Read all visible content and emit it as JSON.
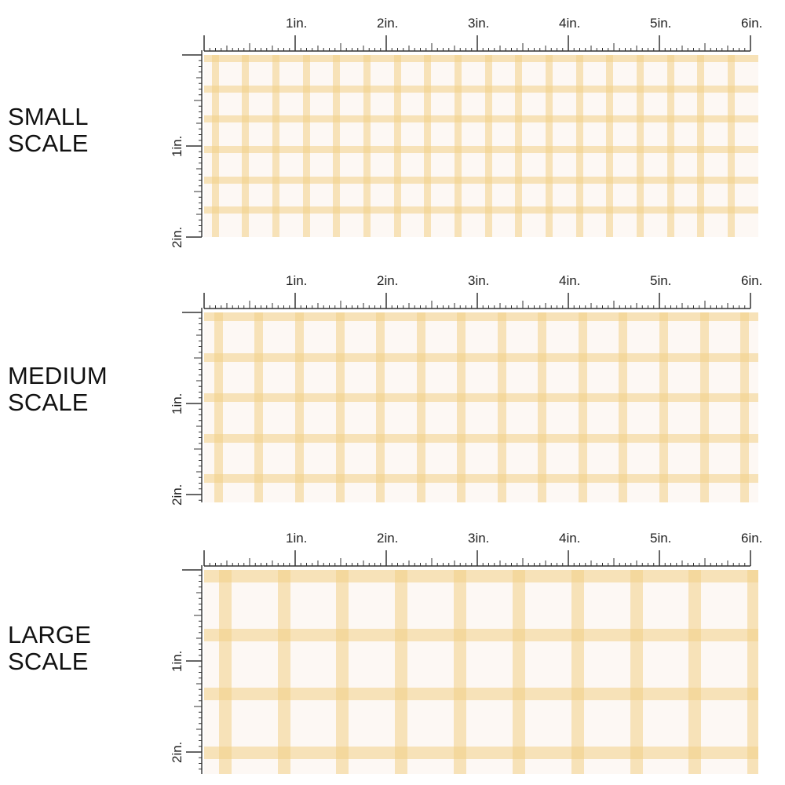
{
  "colors": {
    "background": "#fdf8f4",
    "stripe": "#f3cf86",
    "stripe_alpha": 0.55,
    "ruler": "#333333",
    "label": "#111111"
  },
  "ruler_units": [
    "1in.",
    "2in.",
    "3in.",
    "4in.",
    "5in.",
    "6in."
  ],
  "ruler_vertical_units": [
    "1in.",
    "2in."
  ],
  "sections": [
    {
      "id": "small",
      "label_line1": "SMALL",
      "label_line2": "SCALE",
      "stripes_per_inch": 3
    },
    {
      "id": "medium",
      "label_line1": "MEDIUM",
      "label_line2": "SCALE",
      "stripes_per_inch": 2.25
    },
    {
      "id": "large",
      "label_line1": "LARGE",
      "label_line2": "SCALE",
      "stripes_per_inch": 1.55
    }
  ]
}
